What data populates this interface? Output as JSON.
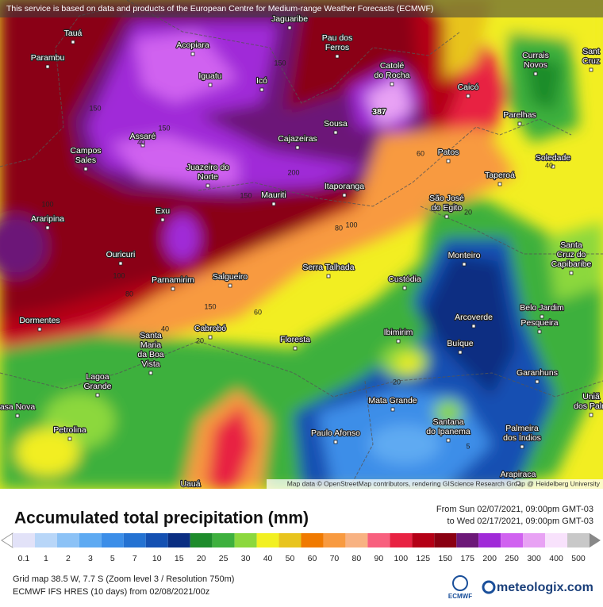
{
  "header": {
    "notice": "This service is based on data and products of the European Centre for Medium-range Weather Forecasts (ECMWF)",
    "attribution": "Map data © OpenStreetMap contributors, rendering GIScience Research Group @ Heidelberg University"
  },
  "map": {
    "max_label": "387",
    "cities": [
      [
        "Tauá"
      ],
      [
        "Jaguaribe"
      ],
      [
        "Pau dos",
        "Ferros"
      ],
      [
        "Parambu"
      ],
      [
        "Acopiara"
      ],
      [
        "Currais",
        "Novos"
      ],
      [
        "Catolé",
        "do Rocha"
      ],
      [
        "Iguatu"
      ],
      [
        "Icó"
      ],
      [
        "Caicó"
      ],
      [
        "Parelhas"
      ],
      [
        "Sousa"
      ],
      [
        "Assaré"
      ],
      [
        "Cajazeiras"
      ],
      [
        "Campos",
        "Sales"
      ],
      [
        "Patos"
      ],
      [
        "Soledade"
      ],
      [
        "Juazeiro do",
        "Norte"
      ],
      [
        "Taperoá"
      ],
      [
        "Itaporanga"
      ],
      [
        "Mauriti"
      ],
      [
        "São José",
        "do Egito"
      ],
      [
        "Araripina"
      ],
      [
        "Exu"
      ],
      [
        "Ouricuri"
      ],
      [
        "Monteiro"
      ],
      [
        "Santa",
        "Cruz do",
        "Capibaribe"
      ],
      [
        "Serra Talhada"
      ],
      [
        "Custódia"
      ],
      [
        "Parnamirim"
      ],
      [
        "Salgueiro"
      ],
      [
        "Belo Jardim"
      ],
      [
        "Pesqueira"
      ],
      [
        "Arcoverde"
      ],
      [
        "Dormentes"
      ],
      [
        "Cabrobó"
      ],
      [
        "Ibimirim"
      ],
      [
        "Floresta"
      ],
      [
        "Santa",
        "Maria",
        "da Boa",
        "Vista"
      ],
      [
        "Buíque"
      ],
      [
        "Lagoa",
        "Grande"
      ],
      [
        "Garanhuns"
      ],
      [
        "Mata Grande"
      ],
      [
        "Santana",
        "do Ipanema"
      ],
      [
        "Paulo Afonso"
      ],
      [
        "Palmeira",
        "dos Índios"
      ],
      [
        "Petrolina"
      ],
      [
        "Uauá"
      ],
      [
        "Arapiraca"
      ],
      [
        "asa Nova"
      ],
      [
        "Sant",
        "Cruz"
      ],
      [
        "Uniã",
        "dos Palm"
      ]
    ],
    "contours": [
      150,
      150,
      150,
      40,
      200,
      150,
      100,
      80,
      100,
      60,
      40,
      20,
      100,
      80,
      150,
      60,
      40,
      20,
      20,
      5
    ]
  },
  "legend": {
    "title": "Accumulated total precipitation (mm)",
    "period_from": "From Sun 02/07/2021, 09:00pm GMT-03",
    "period_to": "to Wed 02/17/2021, 09:00pm GMT-03",
    "steps": [
      {
        "label": "0.1",
        "color": "#e2e2f8"
      },
      {
        "label": "1",
        "color": "#b8d6f8"
      },
      {
        "label": "2",
        "color": "#8cc2f6"
      },
      {
        "label": "3",
        "color": "#5eaaf2"
      },
      {
        "label": "5",
        "color": "#3c8ee8"
      },
      {
        "label": "7",
        "color": "#2472d2"
      },
      {
        "label": "10",
        "color": "#1450b2"
      },
      {
        "label": "15",
        "color": "#0a2e82"
      },
      {
        "label": "20",
        "color": "#1e8c2c"
      },
      {
        "label": "25",
        "color": "#3eb03e"
      },
      {
        "label": "30",
        "color": "#8cd83e"
      },
      {
        "label": "40",
        "color": "#f2f022"
      },
      {
        "label": "50",
        "color": "#e8c41e"
      },
      {
        "label": "60",
        "color": "#f07a00"
      },
      {
        "label": "70",
        "color": "#f89a40"
      },
      {
        "label": "80",
        "color": "#f8b282"
      },
      {
        "label": "90",
        "color": "#f8607e"
      },
      {
        "label": "100",
        "color": "#e82242"
      },
      {
        "label": "125",
        "color": "#b40016"
      },
      {
        "label": "150",
        "color": "#8a0012"
      },
      {
        "label": "175",
        "color": "#6c1878"
      },
      {
        "label": "200",
        "color": "#a02ad8"
      },
      {
        "label": "250",
        "color": "#d062f0"
      },
      {
        "label": "300",
        "color": "#e8a2f4"
      },
      {
        "label": "400",
        "color": "#f8e2fc"
      },
      {
        "label": "500",
        "color": "#c8c8c8"
      }
    ]
  },
  "footer": {
    "grid": "Grid map 38.5 W, 7.7 S (Zoom level 3 / Resolution 750m)",
    "model": "ECMWF IFS HRES (10 days) from 02/08/2021/00z",
    "ecmwf": "ECMWF",
    "brand": "meteologix.com"
  }
}
